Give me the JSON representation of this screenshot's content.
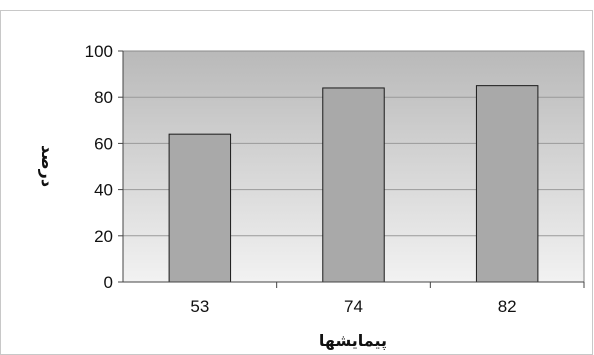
{
  "chart_data": {
    "type": "bar",
    "categories": [
      "53",
      "74",
      "82"
    ],
    "values": [
      64,
      84,
      85
    ],
    "title": "",
    "xlabel": "پیمایشها",
    "ylabel": "درصد",
    "ylim": [
      0,
      100
    ],
    "yticks": [
      "0",
      "20",
      "40",
      "60",
      "80",
      "100"
    ],
    "grid": true,
    "legend": "none",
    "bar_color": "#a9a9a9",
    "bar_border_color": "#1a1a1a",
    "plot_bg_top": "#b9b9b9",
    "plot_bg_bottom": "#f2f2f2"
  }
}
